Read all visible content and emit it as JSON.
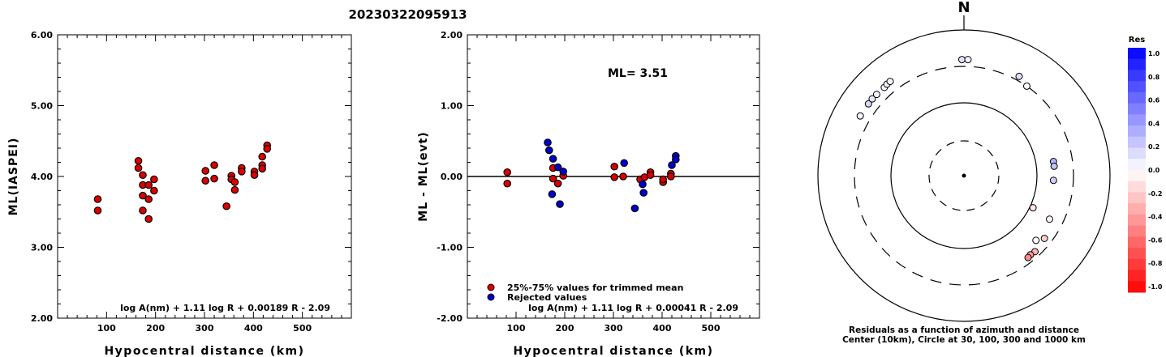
{
  "title": "20230322095913",
  "chart_data": [
    {
      "type": "scatter",
      "ylabel": "ML(IASPEI)",
      "xlabel": "Hypocentral distance (km)",
      "xlim": [
        0,
        600
      ],
      "ylim": [
        2.0,
        6.0
      ],
      "xticks": [
        "100",
        "200",
        "300",
        "400",
        "500"
      ],
      "yticks": [
        "2.00",
        "3.00",
        "4.00",
        "5.00",
        "6.00"
      ],
      "formula": "log A(nm) + 1.11 log R + 0.00189 R - 2.09",
      "series": [
        {
          "color": "#dd0000",
          "points": [
            [
              82,
              3.68
            ],
            [
              82,
              3.52
            ],
            [
              165,
              4.22
            ],
            [
              165,
              4.12
            ],
            [
              174,
              4.02
            ],
            [
              174,
              3.88
            ],
            [
              174,
              3.73
            ],
            [
              174,
              3.52
            ],
            [
              186,
              3.68
            ],
            [
              186,
              3.88
            ],
            [
              186,
              3.4
            ],
            [
              197,
              3.96
            ],
            [
              197,
              3.8
            ],
            [
              302,
              4.08
            ],
            [
              302,
              3.94
            ],
            [
              320,
              4.16
            ],
            [
              320,
              3.97
            ],
            [
              345,
              3.58
            ],
            [
              355,
              4.01
            ],
            [
              355,
              3.96
            ],
            [
              362,
              3.92
            ],
            [
              362,
              3.81
            ],
            [
              376,
              4.12
            ],
            [
              376,
              4.07
            ],
            [
              402,
              4.07
            ],
            [
              402,
              4.02
            ],
            [
              418,
              4.28
            ],
            [
              418,
              4.16
            ],
            [
              418,
              4.11
            ],
            [
              428,
              4.44
            ],
            [
              428,
              4.39
            ]
          ]
        }
      ]
    },
    {
      "type": "scatter",
      "ylabel": "ML - ML(evt)",
      "xlabel": "Hypocentral distance (km)",
      "xlim": [
        0,
        600
      ],
      "ylim": [
        -2.0,
        2.0
      ],
      "xticks": [
        "100",
        "200",
        "300",
        "400",
        "500"
      ],
      "yticks": [
        "-2.00",
        "-1.00",
        "0.00",
        "1.00",
        "2.00"
      ],
      "annotation": "ML= 3.51",
      "formula": "log A(nm) + 1.11 log R + 0.00041 R - 2.09",
      "legend": [
        "25%-75% values for trimmed mean",
        "Rejected values"
      ],
      "series": [
        {
          "name": "25%-75% values for trimmed mean",
          "color": "#dd0000",
          "points": [
            [
              82,
              0.06
            ],
            [
              82,
              -0.1
            ],
            [
              176,
              0.12
            ],
            [
              176,
              -0.03
            ],
            [
              186,
              -0.1
            ],
            [
              197,
              0.01
            ],
            [
              302,
              0.14
            ],
            [
              302,
              -0.01
            ],
            [
              320,
              0.0
            ],
            [
              355,
              -0.04
            ],
            [
              364,
              -0.01
            ],
            [
              376,
              0.06
            ],
            [
              376,
              0.02
            ],
            [
              402,
              -0.08
            ],
            [
              402,
              -0.04
            ],
            [
              418,
              0.04
            ],
            [
              418,
              0.0
            ]
          ]
        },
        {
          "name": "Rejected values",
          "color": "#0000cc",
          "points": [
            [
              165,
              0.48
            ],
            [
              168,
              0.37
            ],
            [
              176,
              0.25
            ],
            [
              186,
              0.13
            ],
            [
              197,
              0.07
            ],
            [
              174,
              -0.25
            ],
            [
              190,
              -0.39
            ],
            [
              322,
              0.19
            ],
            [
              344,
              -0.45
            ],
            [
              360,
              -0.11
            ],
            [
              362,
              -0.23
            ],
            [
              420,
              0.16
            ],
            [
              428,
              0.29
            ],
            [
              428,
              0.24
            ]
          ]
        }
      ]
    },
    {
      "type": "scatter",
      "title": "N",
      "caption_line1": "Residuals as a function of azimuth and distance",
      "caption_line2": "Center (10km), Circle at 30, 100, 300 and 1000 km",
      "colorbar_title": "Res",
      "colorbar_ticks": [
        "1.0",
        "0.8",
        "0.6",
        "0.4",
        "0.2",
        "0.0",
        "-0.2",
        "-0.4",
        "-0.6",
        "-0.8",
        "-1.0"
      ],
      "points": [
        {
          "azimuth": 300,
          "distance": 420,
          "residual": 0.05
        },
        {
          "azimuth": 307,
          "distance": 418,
          "residual": 0.16
        },
        {
          "azimuth": 310,
          "distance": 420,
          "residual": 0.1
        },
        {
          "azimuth": 313,
          "distance": 415,
          "residual": 0.05
        },
        {
          "azimuth": 318,
          "distance": 410,
          "residual": 0.02
        },
        {
          "azimuth": 320,
          "distance": 420,
          "residual": 0.04
        },
        {
          "azimuth": 322,
          "distance": 422,
          "residual": 0.03
        },
        {
          "azimuth": 359,
          "distance": 376,
          "residual": 0.12
        },
        {
          "azimuth": 2,
          "distance": 376,
          "residual": 0.05
        },
        {
          "azimuth": 29,
          "distance": 345,
          "residual": 0.13
        },
        {
          "azimuth": 35,
          "distance": 300,
          "residual": 0.01
        },
        {
          "azimuth": 81,
          "distance": 170,
          "residual": 0.29
        },
        {
          "azimuth": 84,
          "distance": 170,
          "residual": 0.24
        },
        {
          "azimuth": 93,
          "distance": 165,
          "residual": 0.19
        },
        {
          "azimuth": 115,
          "distance": 110,
          "residual": -0.1
        },
        {
          "azimuth": 117,
          "distance": 200,
          "residual": -0.05
        },
        {
          "azimuth": 128,
          "distance": 240,
          "residual": -0.2
        },
        {
          "azimuth": 132,
          "distance": 205,
          "residual": -0.02
        },
        {
          "azimuth": 137,
          "distance": 255,
          "residual": -0.3
        },
        {
          "azimuth": 140,
          "distance": 250,
          "residual": -0.4
        },
        {
          "azimuth": 142,
          "distance": 255,
          "residual": -0.45
        }
      ]
    }
  ]
}
